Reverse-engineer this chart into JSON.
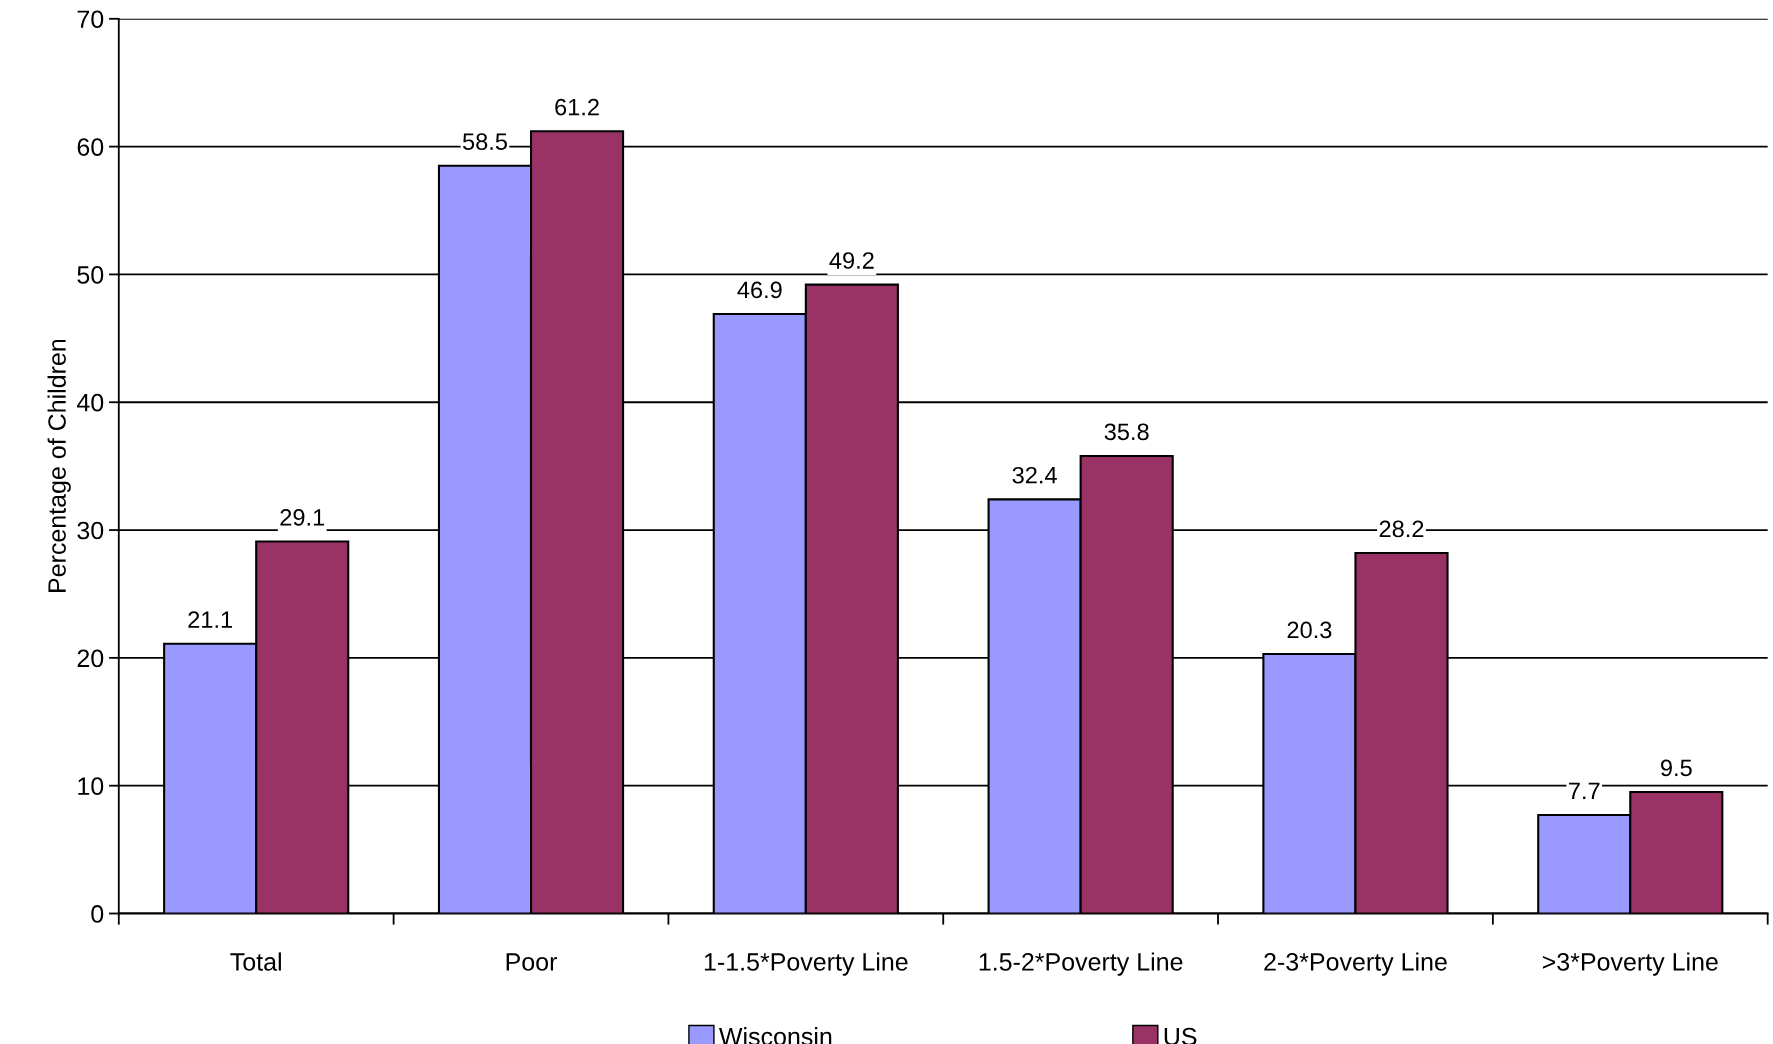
{
  "chart_data": {
    "type": "bar",
    "ylabel": "Percentage of Children",
    "categories": [
      "Total",
      "Poor",
      "1-1.5*Poverty Line",
      "1.5-2*Poverty Line",
      "2-3*Poverty Line",
      ">3*Poverty Line"
    ],
    "series": [
      {
        "name": "Wisconsin",
        "color": "#9999ff",
        "values": [
          21.1,
          58.5,
          46.9,
          32.4,
          20.3,
          7.7
        ]
      },
      {
        "name": "US",
        "color": "#993366",
        "values": [
          29.1,
          61.2,
          49.2,
          35.8,
          28.2,
          9.5
        ]
      }
    ],
    "ylim": [
      0,
      70
    ],
    "yticks": [
      0,
      10,
      20,
      30,
      40,
      50,
      60,
      70
    ],
    "grid": "y",
    "legend": "bottom",
    "data_labels": true
  }
}
